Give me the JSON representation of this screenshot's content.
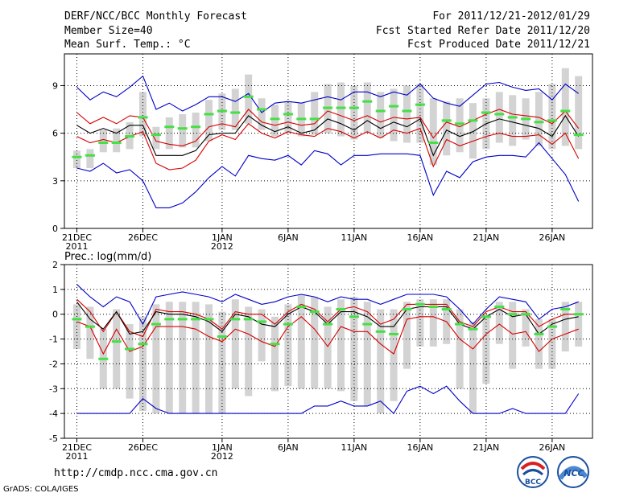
{
  "header": {
    "title": "DERF/NCC/BCC Monthly Forecast",
    "member_size": "Member Size=40",
    "variable": "Mean Surf. Temp.: °C",
    "valid_range": "For 2011/12/21-2012/01/29",
    "refer_date": "Fcst Started Refer Date 2011/12/20",
    "produced_date": "Fcst Produced Date 2011/12/21"
  },
  "footer": {
    "url": "http://cmdp.ncc.cma.gov.cn",
    "credit": "GrADS: COLA/IGES",
    "logo_bcc_text": "BCC",
    "logo_ncc_text": "NCC"
  },
  "colors": {
    "median": "#000000",
    "band": "#d80000",
    "envelope": "#0000c8",
    "observed": "#44e044",
    "box": "#d3d3d3"
  },
  "chart_data": [
    {
      "type": "line",
      "name": "temperature",
      "panel_label": "",
      "xlabel": "",
      "ylabel": "",
      "ylim": [
        0,
        11
      ],
      "yticks": [
        0,
        3,
        6,
        9
      ],
      "xtick_days": [
        0,
        5,
        11,
        16,
        21,
        26,
        31,
        36
      ],
      "xtick_labels": [
        "21DEC",
        "26DEC",
        "1JAN",
        "6JAN",
        "11JAN",
        "16JAN",
        "21JAN",
        "26JAN"
      ],
      "xtick_sublabels": [
        "2011",
        "",
        "2012",
        "",
        "",
        "",
        "",
        ""
      ],
      "grid": true,
      "boxes": [
        {
          "low": 3.8,
          "high": 4.9
        },
        {
          "low": 3.8,
          "high": 5.0
        },
        {
          "low": 4.8,
          "high": 6.2
        },
        {
          "low": 4.8,
          "high": 6.3
        },
        {
          "low": 5.0,
          "high": 6.7
        },
        {
          "low": 5.8,
          "high": 8.6
        },
        {
          "low": 5.0,
          "high": 6.4
        },
        {
          "low": 5.0,
          "high": 7.0
        },
        {
          "low": 5.1,
          "high": 7.2
        },
        {
          "low": 5.1,
          "high": 7.3
        },
        {
          "low": 5.5,
          "high": 8.1
        },
        {
          "low": 6.2,
          "high": 8.5
        },
        {
          "low": 6.2,
          "high": 8.8
        },
        {
          "low": 6.6,
          "high": 9.7
        },
        {
          "low": 6.2,
          "high": 8.2
        },
        {
          "low": 5.8,
          "high": 7.8
        },
        {
          "low": 6.0,
          "high": 8.0
        },
        {
          "low": 5.8,
          "high": 7.9
        },
        {
          "low": 5.9,
          "high": 8.6
        },
        {
          "low": 6.0,
          "high": 9.1
        },
        {
          "low": 5.8,
          "high": 9.2
        },
        {
          "low": 5.6,
          "high": 9.0
        },
        {
          "low": 6.0,
          "high": 9.2
        },
        {
          "low": 5.7,
          "high": 8.6
        },
        {
          "low": 5.5,
          "high": 8.8
        },
        {
          "low": 5.4,
          "high": 9.0
        },
        {
          "low": 5.4,
          "high": 9.1
        },
        {
          "low": 4.0,
          "high": 8.2
        },
        {
          "low": 4.6,
          "high": 8.0
        },
        {
          "low": 4.8,
          "high": 8.2
        },
        {
          "low": 4.4,
          "high": 7.9
        },
        {
          "low": 5.0,
          "high": 8.2
        },
        {
          "low": 5.4,
          "high": 8.6
        },
        {
          "low": 5.2,
          "high": 8.4
        },
        {
          "low": 5.6,
          "high": 8.2
        },
        {
          "low": 5.2,
          "high": 8.6
        },
        {
          "low": 5.0,
          "high": 9.1
        },
        {
          "low": 5.2,
          "high": 10.1
        },
        {
          "low": 5.0,
          "high": 9.6
        }
      ],
      "series": [
        {
          "name": "envelope_max",
          "role": "envelope",
          "values": [
            8.9,
            8.1,
            8.6,
            8.3,
            8.9,
            9.6,
            7.5,
            7.9,
            7.4,
            7.8,
            8.3,
            8.3,
            8.0,
            8.5,
            7.3,
            7.9,
            8.0,
            7.9,
            8.1,
            8.3,
            8.1,
            8.6,
            8.6,
            8.3,
            8.6,
            8.4,
            9.1,
            8.2,
            7.9,
            7.7,
            8.4,
            9.1,
            9.2,
            8.9,
            8.7,
            8.8,
            8.1,
            9.1,
            8.5
          ]
        },
        {
          "name": "upper_band",
          "role": "band",
          "values": [
            7.3,
            6.6,
            7.0,
            6.6,
            7.1,
            7.0,
            5.5,
            5.3,
            5.2,
            5.5,
            6.4,
            6.6,
            6.4,
            7.5,
            6.7,
            6.5,
            6.7,
            6.5,
            6.6,
            7.4,
            7.1,
            6.8,
            7.1,
            6.7,
            7.0,
            6.9,
            7.0,
            5.7,
            6.7,
            6.4,
            6.8,
            7.2,
            7.5,
            7.2,
            7.1,
            7.0,
            6.6,
            7.4,
            6.3
          ]
        },
        {
          "name": "median",
          "role": "median",
          "values": [
            6.5,
            6.0,
            6.3,
            6.0,
            6.5,
            6.5,
            4.6,
            4.6,
            4.6,
            4.9,
            5.9,
            6.0,
            6.0,
            7.1,
            6.5,
            6.1,
            6.4,
            6.0,
            6.2,
            6.9,
            6.6,
            6.2,
            6.8,
            6.3,
            6.7,
            6.4,
            6.9,
            4.6,
            6.2,
            5.8,
            6.1,
            6.6,
            6.9,
            6.7,
            6.5,
            6.3,
            5.8,
            7.1,
            5.8
          ]
        },
        {
          "name": "lower_band",
          "role": "band",
          "values": [
            5.8,
            5.4,
            5.6,
            5.4,
            5.8,
            6.1,
            4.1,
            3.7,
            3.8,
            4.3,
            5.5,
            5.9,
            5.6,
            6.6,
            6.0,
            5.7,
            6.1,
            5.9,
            5.8,
            6.3,
            6.1,
            5.7,
            6.1,
            5.7,
            6.2,
            6.0,
            6.3,
            3.9,
            5.6,
            5.2,
            5.5,
            5.8,
            6.0,
            5.8,
            5.8,
            5.9,
            5.3,
            6.0,
            4.4
          ]
        },
        {
          "name": "envelope_min",
          "role": "envelope",
          "values": [
            3.8,
            3.6,
            4.1,
            3.5,
            3.7,
            3.0,
            1.3,
            1.3,
            1.6,
            2.3,
            3.2,
            3.9,
            3.3,
            4.6,
            4.4,
            4.3,
            4.6,
            4.0,
            4.9,
            4.7,
            4.0,
            4.6,
            4.6,
            4.7,
            4.7,
            4.7,
            4.6,
            2.1,
            3.6,
            3.2,
            4.2,
            4.5,
            4.6,
            4.6,
            4.5,
            5.4,
            4.4,
            3.4,
            1.7
          ]
        }
      ],
      "observed": [
        4.5,
        4.6,
        5.4,
        5.4,
        5.8,
        7.0,
        5.9,
        6.4,
        6.3,
        6.4,
        7.2,
        7.4,
        7.3,
        8.3,
        7.5,
        6.9,
        7.2,
        6.9,
        6.9,
        7.6,
        7.6,
        7.6,
        8.0,
        7.4,
        7.7,
        7.4,
        7.8,
        5.4,
        6.8,
        6.6,
        6.8,
        7.3,
        7.2,
        7.0,
        6.9,
        6.7,
        6.8,
        7.4,
        5.9
      ]
    },
    {
      "type": "line",
      "name": "precipitation",
      "panel_label": "Prec.: log(mm/d)",
      "xlabel": "",
      "ylabel": "",
      "ylim": [
        -5,
        2
      ],
      "yticks": [
        -5,
        -4,
        -3,
        -2,
        -1,
        0,
        1,
        2
      ],
      "xtick_days": [
        0,
        5,
        11,
        16,
        21,
        26,
        31,
        36
      ],
      "xtick_labels": [
        "21DEC",
        "26DEC",
        "1JAN",
        "6JAN",
        "11JAN",
        "16JAN",
        "21JAN",
        "26JAN"
      ],
      "xtick_sublabels": [
        "2011",
        "",
        "2012",
        "",
        "",
        "",
        "",
        ""
      ],
      "grid": true,
      "boxes": [
        {
          "low": -1.4,
          "high": 0.4
        },
        {
          "low": -1.8,
          "high": 0.3
        },
        {
          "low": -3.0,
          "high": -0.6
        },
        {
          "low": -3.0,
          "high": 0.2
        },
        {
          "low": -3.4,
          "high": -0.4
        },
        {
          "low": -3.9,
          "high": -0.1
        },
        {
          "low": -4.0,
          "high": 0.4
        },
        {
          "low": -4.0,
          "high": 0.5
        },
        {
          "low": -4.0,
          "high": 0.5
        },
        {
          "low": -4.0,
          "high": 0.5
        },
        {
          "low": -4.0,
          "high": 0.4
        },
        {
          "low": -4.0,
          "high": 0.1
        },
        {
          "low": -3.0,
          "high": 0.6
        },
        {
          "low": -3.3,
          "high": 0.3
        },
        {
          "low": -1.9,
          "high": 0.2
        },
        {
          "low": -3.1,
          "high": -0.1
        },
        {
          "low": -2.9,
          "high": 0.4
        },
        {
          "low": -3.0,
          "high": 0.8
        },
        {
          "low": -3.0,
          "high": 0.7
        },
        {
          "low": -3.0,
          "high": 0.3
        },
        {
          "low": -3.1,
          "high": 0.6
        },
        {
          "low": -3.5,
          "high": 0.7
        },
        {
          "low": -3.7,
          "high": 0.5
        },
        {
          "low": -4.0,
          "high": 0.2
        },
        {
          "low": -3.5,
          "high": 0.2
        },
        {
          "low": -2.2,
          "high": 0.5
        },
        {
          "low": -1.3,
          "high": 0.6
        },
        {
          "low": -1.3,
          "high": 0.6
        },
        {
          "low": -1.2,
          "high": 0.6
        },
        {
          "low": -3.0,
          "high": 0.2
        },
        {
          "low": -4.0,
          "high": -0.3
        },
        {
          "low": -2.8,
          "high": 0.0
        },
        {
          "low": -1.2,
          "high": 0.5
        },
        {
          "low": -2.2,
          "high": 0.5
        },
        {
          "low": -1.3,
          "high": 0.2
        },
        {
          "low": -2.2,
          "high": -0.2
        },
        {
          "low": -2.2,
          "high": -0.2
        },
        {
          "low": -1.5,
          "high": 0.5
        },
        {
          "low": -1.3,
          "high": 0.5
        }
      ],
      "series": [
        {
          "name": "envelope_max",
          "role": "envelope",
          "values": [
            1.2,
            0.7,
            0.3,
            0.7,
            0.5,
            -0.4,
            0.7,
            0.8,
            0.9,
            0.8,
            0.7,
            0.5,
            0.8,
            0.6,
            0.4,
            0.5,
            0.7,
            0.8,
            0.7,
            0.5,
            0.7,
            0.6,
            0.6,
            0.4,
            0.6,
            0.8,
            0.8,
            0.8,
            0.7,
            0.2,
            -0.4,
            0.2,
            0.7,
            0.6,
            0.5,
            -0.2,
            0.2,
            0.3,
            0.5
          ]
        },
        {
          "name": "upper_band",
          "role": "band",
          "values": [
            0.6,
            0.1,
            -0.7,
            0.1,
            -0.7,
            -0.9,
            0.2,
            0.1,
            0.1,
            0.0,
            -0.2,
            -0.6,
            0.1,
            0.0,
            0.0,
            -0.4,
            0.1,
            0.4,
            0.2,
            -0.3,
            0.2,
            0.3,
            0.1,
            -0.4,
            -0.2,
            0.4,
            0.4,
            0.4,
            0.4,
            -0.3,
            -0.5,
            0.1,
            0.3,
            0.1,
            0.1,
            -0.5,
            -0.2,
            0.0,
            0.0
          ]
        },
        {
          "name": "median",
          "role": "median",
          "values": [
            0.5,
            -0.2,
            -0.6,
            0.1,
            -0.8,
            -0.7,
            0.1,
            0.0,
            0.0,
            -0.1,
            -0.3,
            -0.7,
            0.0,
            -0.1,
            -0.4,
            -0.5,
            0.0,
            0.3,
            0.1,
            -0.4,
            0.1,
            0.1,
            -0.1,
            -0.5,
            -0.5,
            0.2,
            0.3,
            0.3,
            0.3,
            -0.4,
            -0.6,
            -0.1,
            0.2,
            -0.1,
            0.0,
            -0.8,
            -0.4,
            -0.2,
            -0.1
          ]
        },
        {
          "name": "lower_band",
          "role": "band",
          "values": [
            -0.3,
            -0.5,
            -1.6,
            -0.6,
            -1.5,
            -1.3,
            -0.5,
            -0.5,
            -0.5,
            -0.6,
            -0.9,
            -1.1,
            -0.6,
            -0.8,
            -1.1,
            -1.3,
            -0.5,
            -0.1,
            -0.6,
            -1.3,
            -0.5,
            -0.7,
            -0.7,
            -1.2,
            -1.6,
            -0.2,
            -0.1,
            -0.1,
            -0.3,
            -1.0,
            -1.4,
            -0.8,
            -0.4,
            -0.8,
            -0.7,
            -1.5,
            -1.0,
            -0.8,
            -0.6
          ]
        },
        {
          "name": "envelope_min",
          "role": "envelope",
          "values": [
            -4.0,
            -4.0,
            -4.0,
            -4.0,
            -4.0,
            -3.4,
            -3.8,
            -4.0,
            -4.0,
            -4.0,
            -4.0,
            -4.0,
            -4.0,
            -4.0,
            -4.0,
            -4.0,
            -4.0,
            -4.0,
            -3.7,
            -3.7,
            -3.5,
            -3.7,
            -3.7,
            -3.5,
            -4.0,
            -3.1,
            -2.9,
            -3.2,
            -2.9,
            -3.5,
            -4.0,
            -4.0,
            -4.0,
            -3.8,
            -4.0,
            -4.0,
            -4.0,
            -4.0,
            -3.2
          ]
        }
      ],
      "observed": [
        -0.2,
        -0.5,
        -1.8,
        -1.1,
        -1.4,
        -1.2,
        -0.4,
        -0.2,
        -0.2,
        -0.2,
        -0.2,
        -0.9,
        -0.2,
        -0.2,
        -0.3,
        -1.2,
        -0.4,
        0.3,
        0.1,
        -0.4,
        0.2,
        -0.1,
        -0.4,
        -0.7,
        -0.8,
        0.2,
        0.4,
        0.3,
        0.2,
        -0.4,
        -0.6,
        -0.1,
        0.3,
        0.0,
        0.0,
        -0.8,
        -0.5,
        0.2,
        0.0
      ]
    }
  ]
}
